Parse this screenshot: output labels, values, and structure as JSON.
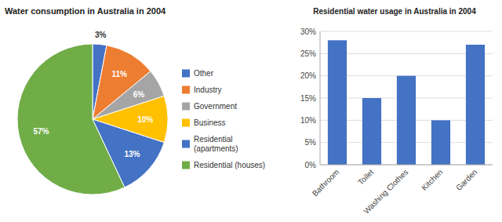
{
  "chart_data": [
    {
      "type": "pie",
      "title": "Water consumption in Australia in 2004",
      "categories": [
        "Other",
        "Industry",
        "Government",
        "Business",
        "Residential\n(apartments)",
        "Residential (houses)"
      ],
      "values": [
        3,
        11,
        6,
        10,
        13,
        57
      ],
      "value_labels": [
        "3%",
        "11%",
        "6%",
        "10%",
        "13%",
        "57%"
      ],
      "colors": [
        "#4472C4",
        "#ED7D31",
        "#A5A5A5",
        "#FFC000",
        "#4472C4",
        "#70AD47"
      ],
      "data_labels": true,
      "legend": "right"
    },
    {
      "type": "bar",
      "title": "Residential water usage in Australia in 2004",
      "categories": [
        "Bathroom",
        "Toilet",
        "Washing Clothes",
        "Kitchen",
        "Garden"
      ],
      "values": [
        28,
        15,
        20,
        10,
        27
      ],
      "color": "#4472C4",
      "ylim": [
        0,
        30
      ],
      "yticks": [
        {
          "value": 0,
          "label": "0%"
        },
        {
          "value": 5,
          "label": "5%"
        },
        {
          "value": 10,
          "label": "10%"
        },
        {
          "value": 15,
          "label": "15%"
        },
        {
          "value": 20,
          "label": "20%"
        },
        {
          "value": 25,
          "label": "25%"
        },
        {
          "value": 30,
          "label": "30%"
        }
      ],
      "grid": true
    }
  ]
}
